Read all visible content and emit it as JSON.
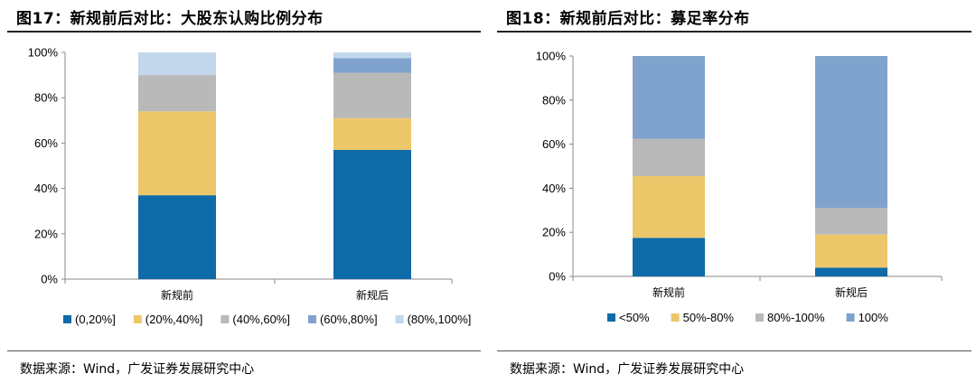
{
  "panels": [
    {
      "title": "图17：新规前后对比：大股东认购比例分布",
      "source": "数据来源：Wind，广发证券发展研究中心"
    },
    {
      "title": "图18：新规前后对比：募足率分布",
      "source": "数据来源：Wind，广发证券发展研究中心"
    }
  ],
  "chart_data": [
    {
      "type": "bar",
      "stacked": true,
      "title": "新规前后对比：大股东认购比例分布",
      "categories": [
        "新规前",
        "新规后"
      ],
      "yticks": [
        "0%",
        "20%",
        "40%",
        "60%",
        "80%",
        "100%"
      ],
      "ylim": [
        0,
        100
      ],
      "grid": false,
      "legend_position": "bottom",
      "series": [
        {
          "name": "(0,20%]",
          "color": "#0f6aa8",
          "values": [
            37,
            57
          ]
        },
        {
          "name": "(20%,40%]",
          "color": "#ecc76a",
          "values": [
            37,
            14
          ]
        },
        {
          "name": "(40%,60%]",
          "color": "#b9b9b9",
          "values": [
            16,
            20
          ]
        },
        {
          "name": "(60%,80%]",
          "color": "#7fa3cc",
          "values": [
            0,
            6.5
          ]
        },
        {
          "name": "(80%,100%]",
          "color": "#c2d7ec",
          "values": [
            10,
            2.5
          ]
        }
      ]
    },
    {
      "type": "bar",
      "stacked": true,
      "title": "新规前后对比：募足率分布",
      "categories": [
        "新规前",
        "新规后"
      ],
      "yticks": [
        "0%",
        "20%",
        "40%",
        "60%",
        "80%",
        "100%"
      ],
      "ylim": [
        0,
        100
      ],
      "grid": false,
      "legend_position": "bottom",
      "series": [
        {
          "name": "<50%",
          "color": "#0f6aa8",
          "values": [
            17.5,
            4
          ]
        },
        {
          "name": "50%-80%",
          "color": "#ecc76a",
          "values": [
            28,
            15
          ]
        },
        {
          "name": "80%-100%",
          "color": "#b9b9b9",
          "values": [
            17,
            12
          ]
        },
        {
          "name": "100%",
          "color": "#7fa3cc",
          "values": [
            37.5,
            69
          ]
        }
      ]
    }
  ]
}
